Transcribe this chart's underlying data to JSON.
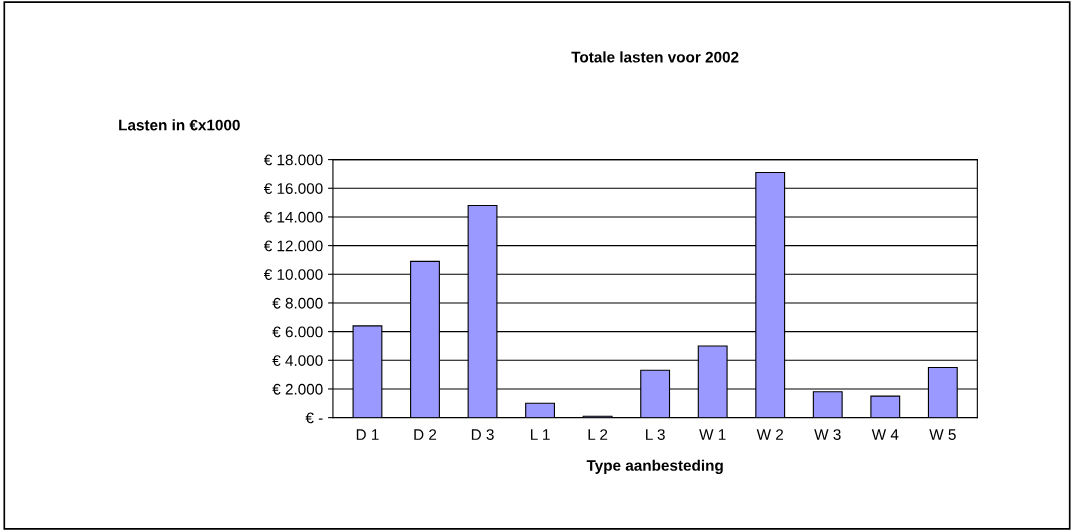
{
  "chart_data": {
    "type": "bar",
    "title": "Totale lasten voor 2002",
    "xlabel": "Type aanbesteding",
    "ylabel": "Lasten in €x1000",
    "categories": [
      "D 1",
      "D 2",
      "D 3",
      "L 1",
      "L 2",
      "L 3",
      "W 1",
      "W 2",
      "W 3",
      "W 4",
      "W 5"
    ],
    "values": [
      6400,
      10900,
      14800,
      1000,
      100,
      3300,
      5000,
      17100,
      1800,
      1500,
      3500
    ],
    "color": "#9999ff",
    "ylim": [
      0,
      18000
    ],
    "yticks": [
      {
        "value": 0,
        "label": "€ -"
      },
      {
        "value": 2000,
        "label": "€ 2.000"
      },
      {
        "value": 4000,
        "label": "€ 4.000"
      },
      {
        "value": 6000,
        "label": "€ 6.000"
      },
      {
        "value": 8000,
        "label": "€ 8.000"
      },
      {
        "value": 10000,
        "label": "€ 10.000"
      },
      {
        "value": 12000,
        "label": "€ 12.000"
      },
      {
        "value": 14000,
        "label": "€ 14.000"
      },
      {
        "value": 16000,
        "label": "€ 16.000"
      },
      {
        "value": 18000,
        "label": "€ 18.000"
      }
    ],
    "grid": "y",
    "legend": false
  }
}
